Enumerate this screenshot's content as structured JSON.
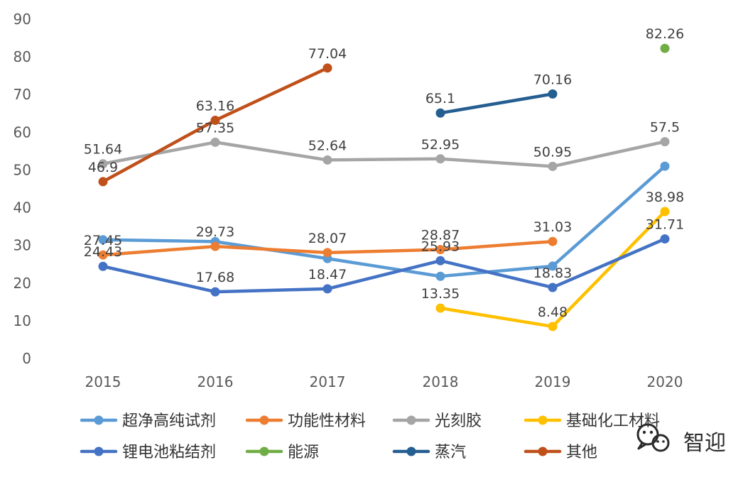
{
  "chart_data": {
    "type": "line",
    "title": "",
    "xlabel": "",
    "ylabel": "",
    "categories": [
      "2015",
      "2016",
      "2017",
      "2018",
      "2019",
      "2020"
    ],
    "ylim": [
      0,
      90
    ],
    "yticks": [
      "0",
      "10",
      "20",
      "30",
      "40",
      "50",
      "60",
      "70",
      "80",
      "90"
    ],
    "grid": false,
    "legend_position": "bottom",
    "series": [
      {
        "name": "超净高纯试剂",
        "color": "#5B9BD5",
        "values": [
          31.5,
          31.0,
          26.5,
          21.8,
          24.5,
          51.0
        ]
      },
      {
        "name": "功能性材料",
        "color": "#ED7D31",
        "values": [
          27.45,
          29.73,
          28.07,
          28.87,
          31.03,
          null
        ]
      },
      {
        "name": "光刻胶",
        "color": "#A5A5A5",
        "values": [
          51.64,
          57.35,
          52.64,
          52.95,
          50.95,
          57.5
        ]
      },
      {
        "name": "基础化工材料",
        "color": "#FFC000",
        "values": [
          null,
          null,
          null,
          13.35,
          8.48,
          38.98
        ]
      },
      {
        "name": "锂电池粘结剂",
        "color": "#4472C4",
        "values": [
          24.43,
          17.68,
          18.47,
          25.93,
          18.83,
          31.71
        ]
      },
      {
        "name": "能源",
        "color": "#70AD47",
        "values": [
          null,
          null,
          null,
          null,
          null,
          82.26
        ]
      },
      {
        "name": "蒸汽",
        "color": "#255E91",
        "values": [
          null,
          null,
          null,
          65.1,
          70.16,
          null
        ]
      },
      {
        "name": "其他",
        "color": "#C0501A",
        "values": [
          46.9,
          63.16,
          77.04,
          null,
          null,
          null
        ]
      }
    ],
    "data_labels": [
      {
        "text": "51.64",
        "x": "2015",
        "y": 51.64
      },
      {
        "text": "46.9",
        "x": "2015",
        "y": 46.9
      },
      {
        "text": "27.45",
        "x": "2015",
        "y": 27.45
      },
      {
        "text": "24.43",
        "x": "2015",
        "y": 24.43
      },
      {
        "text": "63.16",
        "x": "2016",
        "y": 63.16
      },
      {
        "text": "57.35",
        "x": "2016",
        "y": 57.35
      },
      {
        "text": "29.73",
        "x": "2016",
        "y": 29.73
      },
      {
        "text": "17.68",
        "x": "2016",
        "y": 17.68
      },
      {
        "text": "77.04",
        "x": "2017",
        "y": 77.04
      },
      {
        "text": "52.64",
        "x": "2017",
        "y": 52.64
      },
      {
        "text": "28.07",
        "x": "2017",
        "y": 28.07
      },
      {
        "text": "18.47",
        "x": "2017",
        "y": 18.47
      },
      {
        "text": "65.1",
        "x": "2018",
        "y": 65.1
      },
      {
        "text": "52.95",
        "x": "2018",
        "y": 52.95
      },
      {
        "text": "28.87",
        "x": "2018",
        "y": 28.87
      },
      {
        "text": "25.93",
        "x": "2018",
        "y": 25.93
      },
      {
        "text": "13.35",
        "x": "2018",
        "y": 13.35
      },
      {
        "text": "70.16",
        "x": "2019",
        "y": 70.16
      },
      {
        "text": "50.95",
        "x": "2019",
        "y": 50.95
      },
      {
        "text": "31.03",
        "x": "2019",
        "y": 31.03
      },
      {
        "text": "18.83",
        "x": "2019",
        "y": 18.83
      },
      {
        "text": "8.48",
        "x": "2019",
        "y": 8.48
      },
      {
        "text": "82.26",
        "x": "2020",
        "y": 82.26
      },
      {
        "text": "57.5",
        "x": "2020",
        "y": 57.5
      },
      {
        "text": "38.98",
        "x": "2020",
        "y": 38.98
      },
      {
        "text": "31.71",
        "x": "2020",
        "y": 31.71
      }
    ]
  },
  "watermark": {
    "icon": "wechat-icon",
    "text": "智迎"
  }
}
